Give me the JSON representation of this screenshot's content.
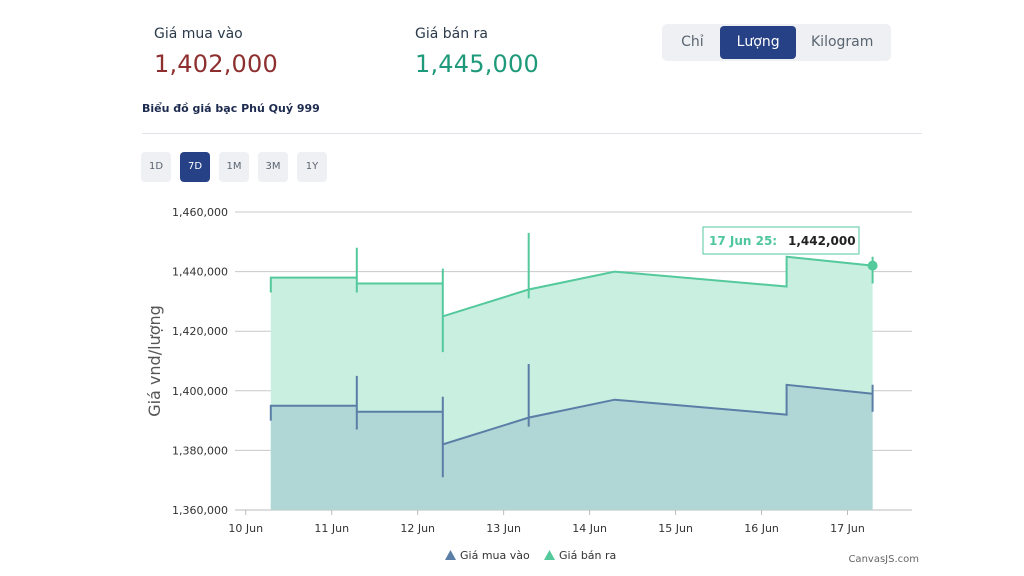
{
  "header": {
    "buy_label": "Giá mua vào",
    "buy_value": "1,402,000",
    "sell_label": "Giá bán ra",
    "sell_value": "1,445,000"
  },
  "units": {
    "options": [
      "Chỉ",
      "Lượng",
      "Kilogram"
    ],
    "selected": "Lượng"
  },
  "chart_title": "Biểu đồ giá bạc Phú Quý 999",
  "ranges": {
    "options": [
      "1D",
      "7D",
      "1M",
      "3M",
      "1Y"
    ],
    "selected": "7D"
  },
  "colors": {
    "buy_line": "#5a7ea6",
    "buy_fill": "#b0d6d6",
    "sell_line": "#54c99c",
    "sell_fill": "#c9efe1",
    "accent": "#264185"
  },
  "tooltip": {
    "label": "17 Jun 25:",
    "value": "1,442,000"
  },
  "credit": "CanvasJS.com",
  "chart_data": {
    "type": "area",
    "ylabel": "Giá vnd/lượng",
    "xlabel": "",
    "ylim": [
      1360000,
      1460000
    ],
    "y_ticks": [
      1360000,
      1380000,
      1400000,
      1420000,
      1440000,
      1460000
    ],
    "y_tick_labels": [
      "1,360,000",
      "1,380,000",
      "1,400,000",
      "1,420,000",
      "1,440,000",
      "1,460,000"
    ],
    "x_ticks": [
      "2025-06-10",
      "2025-06-11",
      "2025-06-12",
      "2025-06-13",
      "2025-06-14",
      "2025-06-15",
      "2025-06-16",
      "2025-06-17"
    ],
    "x_tick_labels": [
      "10 Jun",
      "11 Jun",
      "12 Jun",
      "13 Jun",
      "14 Jun",
      "15 Jun",
      "16 Jun",
      "17 Jun"
    ],
    "xlim": [
      "2025-06-09T21:00",
      "2025-06-17T18:00"
    ],
    "legend_position": "bottom-center",
    "grid": true,
    "series": [
      {
        "name": "Giá mua vào",
        "points": [
          {
            "x": "2025-06-10T07:00",
            "y": 1390000
          },
          {
            "x": "2025-06-10T07:00",
            "y": 1395000
          },
          {
            "x": "2025-06-11T07:00",
            "y": 1395000
          },
          {
            "x": "2025-06-11T07:00",
            "y": 1405000
          },
          {
            "x": "2025-06-11T07:00",
            "y": 1387000
          },
          {
            "x": "2025-06-11T07:00",
            "y": 1393000
          },
          {
            "x": "2025-06-12T07:00",
            "y": 1393000
          },
          {
            "x": "2025-06-12T07:00",
            "y": 1398000
          },
          {
            "x": "2025-06-12T07:00",
            "y": 1371000
          },
          {
            "x": "2025-06-12T07:00",
            "y": 1382000
          },
          {
            "x": "2025-06-13T07:00",
            "y": 1391000
          },
          {
            "x": "2025-06-13T07:00",
            "y": 1409000
          },
          {
            "x": "2025-06-13T07:00",
            "y": 1388000
          },
          {
            "x": "2025-06-13T07:00",
            "y": 1391000
          },
          {
            "x": "2025-06-14T07:00",
            "y": 1397000
          },
          {
            "x": "2025-06-16T07:00",
            "y": 1392000
          },
          {
            "x": "2025-06-16T07:00",
            "y": 1402000
          },
          {
            "x": "2025-06-17T07:00",
            "y": 1399000
          },
          {
            "x": "2025-06-17T07:00",
            "y": 1402000
          },
          {
            "x": "2025-06-17T07:00",
            "y": 1393000
          },
          {
            "x": "2025-06-17T07:00",
            "y": 1399000
          }
        ]
      },
      {
        "name": "Giá bán ra",
        "points": [
          {
            "x": "2025-06-10T07:00",
            "y": 1433000
          },
          {
            "x": "2025-06-10T07:00",
            "y": 1438000
          },
          {
            "x": "2025-06-11T07:00",
            "y": 1438000
          },
          {
            "x": "2025-06-11T07:00",
            "y": 1448000
          },
          {
            "x": "2025-06-11T07:00",
            "y": 1433000
          },
          {
            "x": "2025-06-11T07:00",
            "y": 1436000
          },
          {
            "x": "2025-06-12T07:00",
            "y": 1436000
          },
          {
            "x": "2025-06-12T07:00",
            "y": 1441000
          },
          {
            "x": "2025-06-12T07:00",
            "y": 1413000
          },
          {
            "x": "2025-06-12T07:00",
            "y": 1425000
          },
          {
            "x": "2025-06-13T07:00",
            "y": 1434000
          },
          {
            "x": "2025-06-13T07:00",
            "y": 1453000
          },
          {
            "x": "2025-06-13T07:00",
            "y": 1431000
          },
          {
            "x": "2025-06-13T07:00",
            "y": 1434000
          },
          {
            "x": "2025-06-14T07:00",
            "y": 1440000
          },
          {
            "x": "2025-06-16T07:00",
            "y": 1435000
          },
          {
            "x": "2025-06-16T07:00",
            "y": 1445000
          },
          {
            "x": "2025-06-17T07:00",
            "y": 1442000
          },
          {
            "x": "2025-06-17T07:00",
            "y": 1445000
          },
          {
            "x": "2025-06-17T07:00",
            "y": 1436000
          },
          {
            "x": "2025-06-17T07:00",
            "y": 1442000
          }
        ]
      }
    ],
    "highlighted_point": {
      "series": "Giá bán ra",
      "x": "2025-06-17T07:00",
      "y": 1442000
    }
  }
}
